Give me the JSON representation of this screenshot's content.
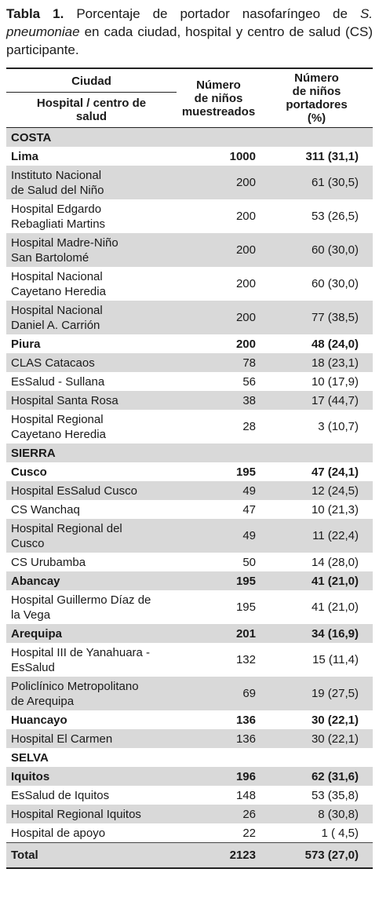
{
  "caption": {
    "label": "Tabla 1.",
    "text_before": "Porcentaje de portador nasofaríngeo de",
    "species": "S. pneumoniae",
    "text_after": "en cada ciudad, hospital y centro de salud (CS) participante."
  },
  "table": {
    "header": {
      "city": "Ciudad",
      "site": "Hospital / centro de\nsalud",
      "sampled": "Número\nde niños\nmuestreados",
      "carriers": "Número\nde niños\nportadores\n(%)"
    },
    "sections": [
      {
        "name": "COSTA",
        "cities": [
          {
            "name": "Lima",
            "sampled": 1000,
            "carriers": "311 (31,1)",
            "sites": [
              {
                "name": "Instituto Nacional\nde Salud del Niño",
                "sampled": 200,
                "carriers": "61 (30,5)"
              },
              {
                "name": "Hospital Edgardo\nRebagliati Martins",
                "sampled": 200,
                "carriers": "53 (26,5)"
              },
              {
                "name": "Hospital Madre-Niño\nSan Bartolomé",
                "sampled": 200,
                "carriers": "60 (30,0)"
              },
              {
                "name": "Hospital Nacional\nCayetano Heredia",
                "sampled": 200,
                "carriers": "60 (30,0)"
              },
              {
                "name": "Hospital Nacional\nDaniel A. Carrión",
                "sampled": 200,
                "carriers": "77 (38,5)"
              }
            ]
          },
          {
            "name": "Piura",
            "sampled": 200,
            "carriers": "48 (24,0)",
            "sites": [
              {
                "name": "CLAS Catacaos",
                "sampled": 78,
                "carriers": "18 (23,1)"
              },
              {
                "name": "EsSalud - Sullana",
                "sampled": 56,
                "carriers": "10 (17,9)"
              },
              {
                "name": "Hospital Santa Rosa",
                "sampled": 38,
                "carriers": "17 (44,7)"
              },
              {
                "name": "Hospital Regional\nCayetano Heredia",
                "sampled": 28,
                "carriers": "3 (10,7)"
              }
            ]
          }
        ]
      },
      {
        "name": "SIERRA",
        "cities": [
          {
            "name": "Cusco",
            "sampled": 195,
            "carriers": "47 (24,1)",
            "sites": [
              {
                "name": "Hospital EsSalud Cusco",
                "sampled": 49,
                "carriers": "12 (24,5)"
              },
              {
                "name": "CS Wanchaq",
                "sampled": 47,
                "carriers": "10 (21,3)"
              },
              {
                "name": "Hospital Regional del\nCusco",
                "sampled": 49,
                "carriers": "11 (22,4)"
              },
              {
                "name": "CS Urubamba",
                "sampled": 50,
                "carriers": "14 (28,0)"
              }
            ]
          },
          {
            "name": "Abancay",
            "sampled": 195,
            "carriers": "41 (21,0)",
            "sites": [
              {
                "name": "Hospital Guillermo Díaz de\nla Vega",
                "sampled": 195,
                "carriers": "41 (21,0)"
              }
            ]
          },
          {
            "name": "Arequipa",
            "sampled": 201,
            "carriers": "34 (16,9)",
            "sites": [
              {
                "name": "Hospital III de Yanahuara -\nEsSalud",
                "sampled": 132,
                "carriers": "15 (11,4)"
              },
              {
                "name": "Policlínico Metropolitano\nde Arequipa",
                "sampled": 69,
                "carriers": "19 (27,5)"
              }
            ]
          },
          {
            "name": "Huancayo",
            "sampled": 136,
            "carriers": "30 (22,1)",
            "sites": [
              {
                "name": "Hospital El Carmen",
                "sampled": 136,
                "carriers": "30 (22,1)"
              }
            ]
          }
        ]
      },
      {
        "name": "SELVA",
        "cities": [
          {
            "name": "Iquitos",
            "sampled": 196,
            "carriers": "62 (31,6)",
            "sites": [
              {
                "name": "EsSalud de Iquitos",
                "sampled": 148,
                "carriers": "53 (35,8)"
              },
              {
                "name": "Hospital Regional Iquitos",
                "sampled": 26,
                "carriers": "8 (30,8)"
              },
              {
                "name": "Hospital de apoyo",
                "sampled": 22,
                "carriers": "1 ( 4,5)"
              }
            ]
          }
        ]
      }
    ],
    "total": {
      "name": "Total",
      "sampled": 2123,
      "carriers": "573 (27,0)"
    }
  }
}
